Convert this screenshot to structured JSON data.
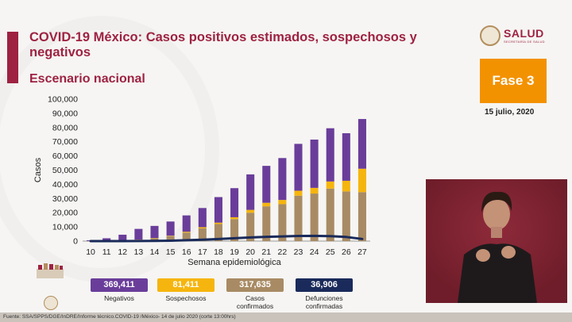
{
  "header": {
    "title": "COVID-19 México: Casos positivos estimados, sospechosos y negativos",
    "subtitle": "Escenario nacional",
    "brand": "SALUD",
    "brand_sub": "SECRETARÍA DE SALUD",
    "phase": "Fase 3",
    "date": "15 julio, 2020"
  },
  "colors": {
    "negativos": "#6a3d9a",
    "sospechosos": "#f6b50e",
    "confirmados": "#a88b64",
    "defunciones": "#1a2a5a",
    "accent": "#9e2241",
    "phase_bg": "#f39200"
  },
  "chart_data": {
    "type": "bar",
    "stacked": true,
    "xlabel": "Semana epidemiológica",
    "ylabel": "Casos",
    "ylim": [
      0,
      100000
    ],
    "yticks": [
      0,
      10000,
      20000,
      30000,
      40000,
      50000,
      60000,
      70000,
      80000,
      90000,
      100000
    ],
    "ytick_labels": [
      "0",
      "10,000",
      "20,000",
      "30,000",
      "40,000",
      "50,000",
      "60,000",
      "70,000",
      "80,000",
      "90,000",
      "100,000"
    ],
    "categories": [
      "10",
      "11",
      "12",
      "13",
      "14",
      "15",
      "16",
      "17",
      "18",
      "19",
      "20",
      "21",
      "22",
      "23",
      "24",
      "25",
      "26",
      "27"
    ],
    "series": [
      {
        "name": "Casos confirmados",
        "values": [
          100,
          200,
          500,
          1000,
          2000,
          3500,
          6000,
          9000,
          12000,
          15500,
          20000,
          24500,
          26000,
          32000,
          33500,
          37000,
          35000,
          34500
        ]
      },
      {
        "name": "Sospechosos",
        "values": [
          0,
          0,
          0,
          100,
          200,
          300,
          600,
          800,
          1000,
          1300,
          2000,
          2500,
          3000,
          3500,
          4000,
          5000,
          7500,
          16500
        ]
      },
      {
        "name": "Negativos",
        "values": [
          500,
          1800,
          4000,
          7500,
          8500,
          10000,
          11500,
          13500,
          18000,
          20500,
          25000,
          26000,
          29500,
          33000,
          34000,
          37500,
          33500,
          35000
        ]
      }
    ],
    "line": {
      "name": "Defunciones confirmadas",
      "values": [
        0,
        0,
        0,
        50,
        150,
        300,
        600,
        1000,
        1500,
        2000,
        2600,
        3000,
        3300,
        3600,
        3700,
        3500,
        2900,
        1500
      ]
    }
  },
  "legend": [
    {
      "value": "369,411",
      "label": "Negativos",
      "color": "#6a3d9a"
    },
    {
      "value": "81,411",
      "label": "Sospechosos",
      "color": "#f6b50e"
    },
    {
      "value": "317,635",
      "label": "Casos confirmados",
      "color": "#a88b64"
    },
    {
      "value": "36,906",
      "label": "Defunciones confirmadas",
      "color": "#1a2a5a"
    }
  ],
  "footer": "Fuente: SSA/SPPS/DGE/InDRE/Informe técnico.COVID-19 /México- 14 de julio 2020 (corte 13:00hrs)"
}
